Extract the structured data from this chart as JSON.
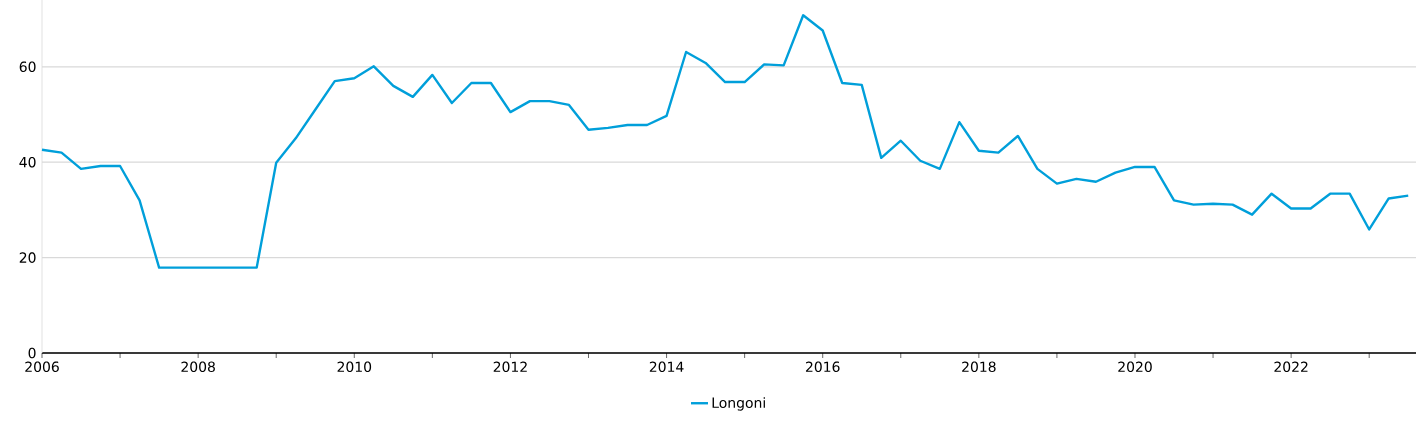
{
  "chart_data": {
    "type": "line",
    "x": [
      2006.0,
      2006.25,
      2006.5,
      2006.75,
      2007.0,
      2007.25,
      2007.5,
      2007.75,
      2008.0,
      2008.25,
      2008.5,
      2008.75,
      2009.0,
      2009.25,
      2009.5,
      2009.75,
      2010.0,
      2010.25,
      2010.5,
      2010.75,
      2011.0,
      2011.25,
      2011.5,
      2011.75,
      2012.0,
      2012.25,
      2012.5,
      2012.75,
      2013.0,
      2013.25,
      2013.5,
      2013.75,
      2014.0,
      2014.25,
      2014.5,
      2014.75,
      2015.0,
      2015.25,
      2015.5,
      2015.75,
      2016.0,
      2016.25,
      2016.5,
      2016.75,
      2017.0,
      2017.25,
      2017.5,
      2017.75,
      2018.0,
      2018.25,
      2018.5,
      2018.75,
      2019.0,
      2019.25,
      2019.5,
      2019.75,
      2020.0,
      2020.25,
      2020.5,
      2020.75,
      2021.0,
      2021.25,
      2021.5,
      2021.75,
      2022.0,
      2022.25,
      2022.5,
      2022.75,
      2023.0,
      2023.25,
      2023.5
    ],
    "series": [
      {
        "name": "Longoni",
        "color": "#009fda",
        "values": [
          42.6,
          42.0,
          38.6,
          39.2,
          39.2,
          32.0,
          17.9,
          17.9,
          17.9,
          17.9,
          17.9,
          17.9,
          39.9,
          45.0,
          51.0,
          57.0,
          57.6,
          60.1,
          56.0,
          53.7,
          58.3,
          52.4,
          56.6,
          56.6,
          50.5,
          52.8,
          52.8,
          52.0,
          46.8,
          47.2,
          47.8,
          47.8,
          49.7,
          63.1,
          60.8,
          56.8,
          56.8,
          60.5,
          60.3,
          70.8,
          67.6,
          56.6,
          56.2,
          40.9,
          44.5,
          40.3,
          38.6,
          48.4,
          42.4,
          42.0,
          45.5,
          38.6,
          35.5,
          36.5,
          35.9,
          37.8,
          39.0,
          39.0,
          32.0,
          31.1,
          31.3,
          31.1,
          29.0,
          33.4,
          30.3,
          30.3,
          33.4,
          33.4,
          25.9,
          32.4,
          33.0
        ]
      }
    ],
    "xlim": [
      2006,
      2023.6
    ],
    "ylim": [
      0,
      74
    ],
    "xticks": [
      2006,
      {
        "value": 2007,
        "label": null
      },
      2008,
      {
        "value": 2009,
        "label": null
      },
      2010,
      {
        "value": 2011,
        "label": null
      },
      2012,
      {
        "value": 2013,
        "label": null
      },
      2014,
      {
        "value": 2015,
        "label": null
      },
      2016,
      {
        "value": 2017,
        "label": null
      },
      2018,
      {
        "value": 2019,
        "label": null
      },
      2020,
      {
        "value": 2021,
        "label": null
      },
      2022,
      {
        "value": 2023,
        "label": null
      }
    ],
    "yticks": [
      0,
      20,
      40,
      60
    ],
    "grid": "y",
    "legend": "bottom",
    "marker": "none",
    "line_style": "solid"
  }
}
